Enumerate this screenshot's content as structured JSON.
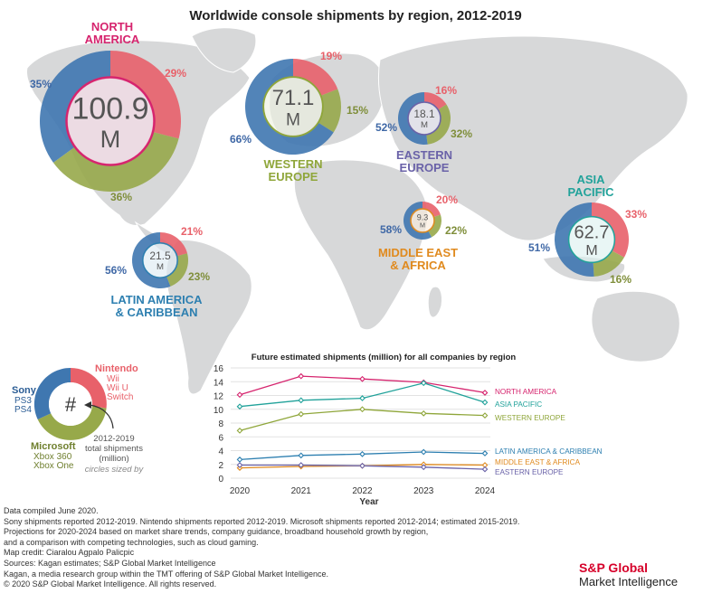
{
  "title": "Worldwide console shipments by region, 2012-2019",
  "colors": {
    "sony": "#3f77b0",
    "nintendo": "#e8616a",
    "microsoft": "#97a94a",
    "map": "#d7d8d9",
    "north_america": "#d6246e",
    "western_europe": "#8fa63a",
    "eastern_europe": "#6a62a8",
    "middle_east_africa": "#e08a1e",
    "asia_pacific": "#21a29a",
    "latin_america": "#2d7fb0"
  },
  "chart_data": [
    {
      "type": "pie",
      "title": "Worldwide console shipments by region, 2012-2019",
      "segment_order": [
        "Nintendo",
        "Microsoft",
        "Sony"
      ],
      "regions": [
        {
          "key": "north_america",
          "label": [
            "NORTH",
            "AMERICA"
          ],
          "total": "100.9",
          "unit": "M",
          "shares": {
            "Sony": 35,
            "Nintendo": 29,
            "Microsoft": 36
          },
          "pct_labels": [
            "29%",
            "36%",
            "35%"
          ]
        },
        {
          "key": "western_europe",
          "label": [
            "WESTERN",
            "EUROPE"
          ],
          "total": "71.1",
          "unit": "M",
          "shares": {
            "Sony": 66,
            "Nintendo": 19,
            "Microsoft": 15
          },
          "pct_labels": [
            "19%",
            "15%",
            "66%"
          ]
        },
        {
          "key": "eastern_europe",
          "label": [
            "EASTERN",
            "EUROPE"
          ],
          "total": "18.1",
          "unit": "M",
          "shares": {
            "Sony": 52,
            "Nintendo": 16,
            "Microsoft": 32
          },
          "pct_labels": [
            "16%",
            "32%",
            "52%"
          ]
        },
        {
          "key": "middle_east_africa",
          "label": [
            "MIDDLE EAST",
            "& AFRICA"
          ],
          "total": "9.3",
          "unit": "M",
          "shares": {
            "Sony": 58,
            "Nintendo": 20,
            "Microsoft": 22
          },
          "pct_labels": [
            "20%",
            "22%",
            "58%"
          ]
        },
        {
          "key": "asia_pacific",
          "label": [
            "ASIA",
            "PACIFIC"
          ],
          "total": "62.7",
          "unit": "M",
          "shares": {
            "Sony": 51,
            "Nintendo": 33,
            "Microsoft": 16
          },
          "pct_labels": [
            "33%",
            "16%",
            "51%"
          ]
        },
        {
          "key": "latin_america",
          "label": [
            "LATIN AMERICA",
            "& CARIBBEAN"
          ],
          "total": "21.5",
          "unit": "M",
          "shares": {
            "Sony": 56,
            "Nintendo": 21,
            "Microsoft": 23
          },
          "pct_labels": [
            "21%",
            "23%",
            "56%"
          ]
        }
      ]
    },
    {
      "type": "line",
      "title": "Future estimated shipments (million) for all companies by region",
      "xlabel": "Year",
      "ylabel": "",
      "x": [
        2020,
        2021,
        2022,
        2023,
        2024
      ],
      "xlim": [
        2020,
        2024
      ],
      "ylim": [
        0,
        16
      ],
      "yticks": [
        0,
        2,
        4,
        6,
        8,
        10,
        12,
        14,
        16
      ],
      "grid": true,
      "series": [
        {
          "name": "NORTH AMERICA",
          "color_key": "north_america",
          "values": [
            12.1,
            14.8,
            14.4,
            13.9,
            12.4
          ]
        },
        {
          "name": "ASIA PACIFIC",
          "color_key": "asia_pacific",
          "values": [
            10.4,
            11.3,
            11.6,
            13.8,
            11.0
          ]
        },
        {
          "name": "WESTERN EUROPE",
          "color_key": "western_europe",
          "values": [
            6.9,
            9.3,
            10.0,
            9.4,
            9.1
          ]
        },
        {
          "name": "LATIN AMERICA & CARIBBEAN",
          "color_key": "latin_america",
          "values": [
            2.7,
            3.3,
            3.5,
            3.8,
            3.6
          ]
        },
        {
          "name": "MIDDLE EAST & AFRICA",
          "color_key": "middle_east_africa",
          "values": [
            1.5,
            1.7,
            1.8,
            2.0,
            1.9
          ]
        },
        {
          "name": "EASTERN EUROPE",
          "color_key": "eastern_europe",
          "values": [
            1.9,
            1.9,
            1.8,
            1.6,
            1.3
          ]
        }
      ]
    }
  ],
  "legend": {
    "nintendo": {
      "title": "Nintendo",
      "items": [
        "Wii",
        "Wii U",
        "Switch"
      ]
    },
    "sony": {
      "title": "Sony",
      "items": [
        "PS3",
        "PS4"
      ]
    },
    "microsoft": {
      "title": "Microsoft",
      "items": [
        "Xbox 360",
        "Xbox One"
      ]
    },
    "center_symbol": "#",
    "note": [
      "2012-2019",
      "total shipments",
      "(million)"
    ],
    "note_sub": "circles sized by"
  },
  "notes": [
    "Data compiled June 2020.",
    "Sony shipments reported 2012-2019. Nintendo shipments reported 2012-2019. Microsoft shipments reported 2012-2014; estimated 2015-2019.",
    "Projections for 2020-2024 based on market share trends, company guidance, broadband household growth by region,",
    "and a comparison with competing technologies, such as cloud gaming.",
    "Map credit: Ciaralou Agpalo Palicpic",
    "Sources: Kagan estimates; S&P Global Market Intelligence",
    "Kagan, a media research group within the TMT offering of S&P Global Market Intelligence.",
    "© 2020 S&P Global Market Intelligence. All rights reserved."
  ],
  "brand": {
    "line1": "S&P Global",
    "line2": "Market Intelligence"
  }
}
